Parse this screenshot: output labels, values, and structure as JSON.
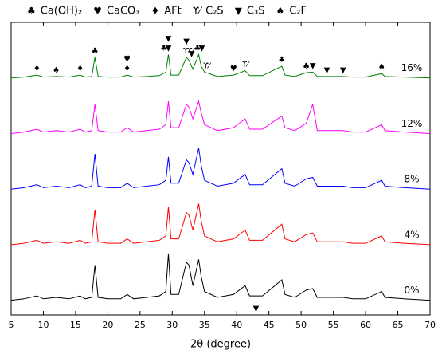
{
  "chart_data": {
    "type": "line",
    "xlabel": "2θ (degree)",
    "xlim": [
      5,
      70
    ],
    "xticks": [
      5,
      10,
      15,
      20,
      25,
      30,
      35,
      40,
      45,
      50,
      55,
      60,
      65,
      70
    ],
    "ylim": [
      0,
      100
    ],
    "legend": "top",
    "phases": [
      {
        "symbol": "♣",
        "name": "Ca(OH)₂"
      },
      {
        "symbol": "♥",
        "name": "CaCO₃"
      },
      {
        "symbol": "♦",
        "name": "AFt"
      },
      {
        "symbol": "ϒ⁄",
        "name": "C₂S"
      },
      {
        "symbol": "▼",
        "name": "C₃S"
      },
      {
        "symbol": "♠",
        "name": "C₂F"
      }
    ],
    "peak_markers": [
      {
        "symbol": "♦",
        "x": 9
      },
      {
        "symbol": "♠",
        "x": 12
      },
      {
        "symbol": "♦",
        "x": 15.7
      },
      {
        "symbol": "♣",
        "x": 18
      },
      {
        "symbol": "♦",
        "x": 23
      },
      {
        "symbol": "♥",
        "x": 23
      },
      {
        "symbol": "♣",
        "x": 28.7
      },
      {
        "symbol": "▼",
        "x": 29.4
      },
      {
        "symbol": "▼",
        "x": 29.4
      },
      {
        "symbol": "ϒ⁄",
        "x": 32.2
      },
      {
        "symbol": "▼",
        "x": 32.2
      },
      {
        "symbol": "ϒ⁄",
        "x": 32.8
      },
      {
        "symbol": "▼",
        "x": 33
      },
      {
        "symbol": "♣",
        "x": 33.9
      },
      {
        "symbol": "▼",
        "x": 34.6
      },
      {
        "symbol": "ϒ⁄",
        "x": 35.3
      },
      {
        "symbol": "♥",
        "x": 39.5
      },
      {
        "symbol": "ϒ⁄",
        "x": 41.3
      },
      {
        "symbol": "▼",
        "x": 43
      },
      {
        "symbol": "♣",
        "x": 47
      },
      {
        "symbol": "♣",
        "x": 50.8
      },
      {
        "symbol": "▼",
        "x": 51.8
      },
      {
        "symbol": "▼",
        "x": 54
      },
      {
        "symbol": "▼",
        "x": 56.5
      },
      {
        "symbol": "♠",
        "x": 62.5
      }
    ],
    "x": [
      5,
      7,
      9,
      10,
      12,
      14,
      15.7,
      16.5,
      17.5,
      18,
      18.5,
      20,
      22,
      23,
      24,
      26,
      28,
      29,
      29.4,
      29.8,
      31,
      32.2,
      32.6,
      33.2,
      34.1,
      34.5,
      35,
      37,
      39.5,
      41.3,
      42,
      44,
      47,
      47.5,
      49,
      50.8,
      51.8,
      52.5,
      54,
      56.5,
      58,
      60,
      62.5,
      63,
      66,
      70
    ],
    "series": [
      {
        "name": "0%",
        "color": "#000000",
        "values": [
          5,
          5.5,
          6.5,
          5.5,
          6,
          5.5,
          6.5,
          5.5,
          6,
          17,
          6,
          5.5,
          5.5,
          7,
          5.5,
          6,
          6.5,
          8,
          21,
          7,
          7,
          18,
          17,
          10,
          19,
          13,
          8,
          6,
          7,
          10,
          6.5,
          6.5,
          12,
          7,
          6,
          8.5,
          9,
          6,
          6,
          6,
          5.5,
          5.5,
          8,
          6,
          5.5,
          5
        ]
      },
      {
        "name": "4%",
        "color": "#ff0000",
        "values": [
          24,
          24.5,
          25.5,
          24.5,
          25,
          24.5,
          25.5,
          24.5,
          25,
          36,
          25,
          24.5,
          24.5,
          26,
          24.5,
          25,
          25.5,
          27,
          37,
          26,
          26,
          35,
          34,
          29,
          38,
          32,
          27,
          25,
          26,
          29,
          25.5,
          25.5,
          31,
          26,
          25,
          27.5,
          28,
          25,
          25,
          25,
          24.5,
          24.5,
          27,
          25,
          24.5,
          24
        ]
      },
      {
        "name": "8%",
        "color": "#0000ff",
        "values": [
          43,
          43.5,
          44.5,
          43.5,
          44,
          43.5,
          44.5,
          43.5,
          44,
          55,
          44,
          43.5,
          43.5,
          45,
          43.5,
          44,
          44.5,
          46,
          54,
          45,
          45,
          53,
          52,
          48,
          57,
          51,
          46,
          44,
          45,
          48,
          44.5,
          44.5,
          50,
          45,
          44,
          46.5,
          47,
          44,
          44,
          44,
          43.5,
          43.5,
          46,
          44,
          43.5,
          43
        ]
      },
      {
        "name": "12%",
        "color": "#ff00ff",
        "values": [
          62,
          62.5,
          63.5,
          62.5,
          63,
          62.5,
          63.5,
          62.5,
          63,
          72,
          63,
          62.5,
          62.5,
          64,
          62.5,
          63,
          63.5,
          65,
          73,
          64,
          64,
          72,
          71,
          67,
          73,
          69,
          65,
          63,
          64,
          67,
          63.5,
          63.5,
          68,
          64,
          63,
          65.5,
          72,
          63,
          63,
          63,
          62.5,
          62.5,
          65,
          63,
          62.5,
          62
        ]
      },
      {
        "name": "16%",
        "color": "#008000",
        "values": [
          81,
          81.3,
          82,
          81.3,
          81.5,
          81.3,
          82,
          81.3,
          81.5,
          88,
          81.5,
          81.3,
          81.3,
          82,
          81.3,
          81.5,
          81.8,
          83,
          89,
          82,
          82,
          88,
          87,
          84,
          89,
          85,
          83,
          81.5,
          82,
          83.5,
          81.8,
          81.8,
          85,
          82,
          81.5,
          82.8,
          83,
          81.5,
          81.5,
          81.5,
          81.3,
          81.3,
          82.5,
          81.5,
          81.3,
          81
        ]
      }
    ]
  }
}
